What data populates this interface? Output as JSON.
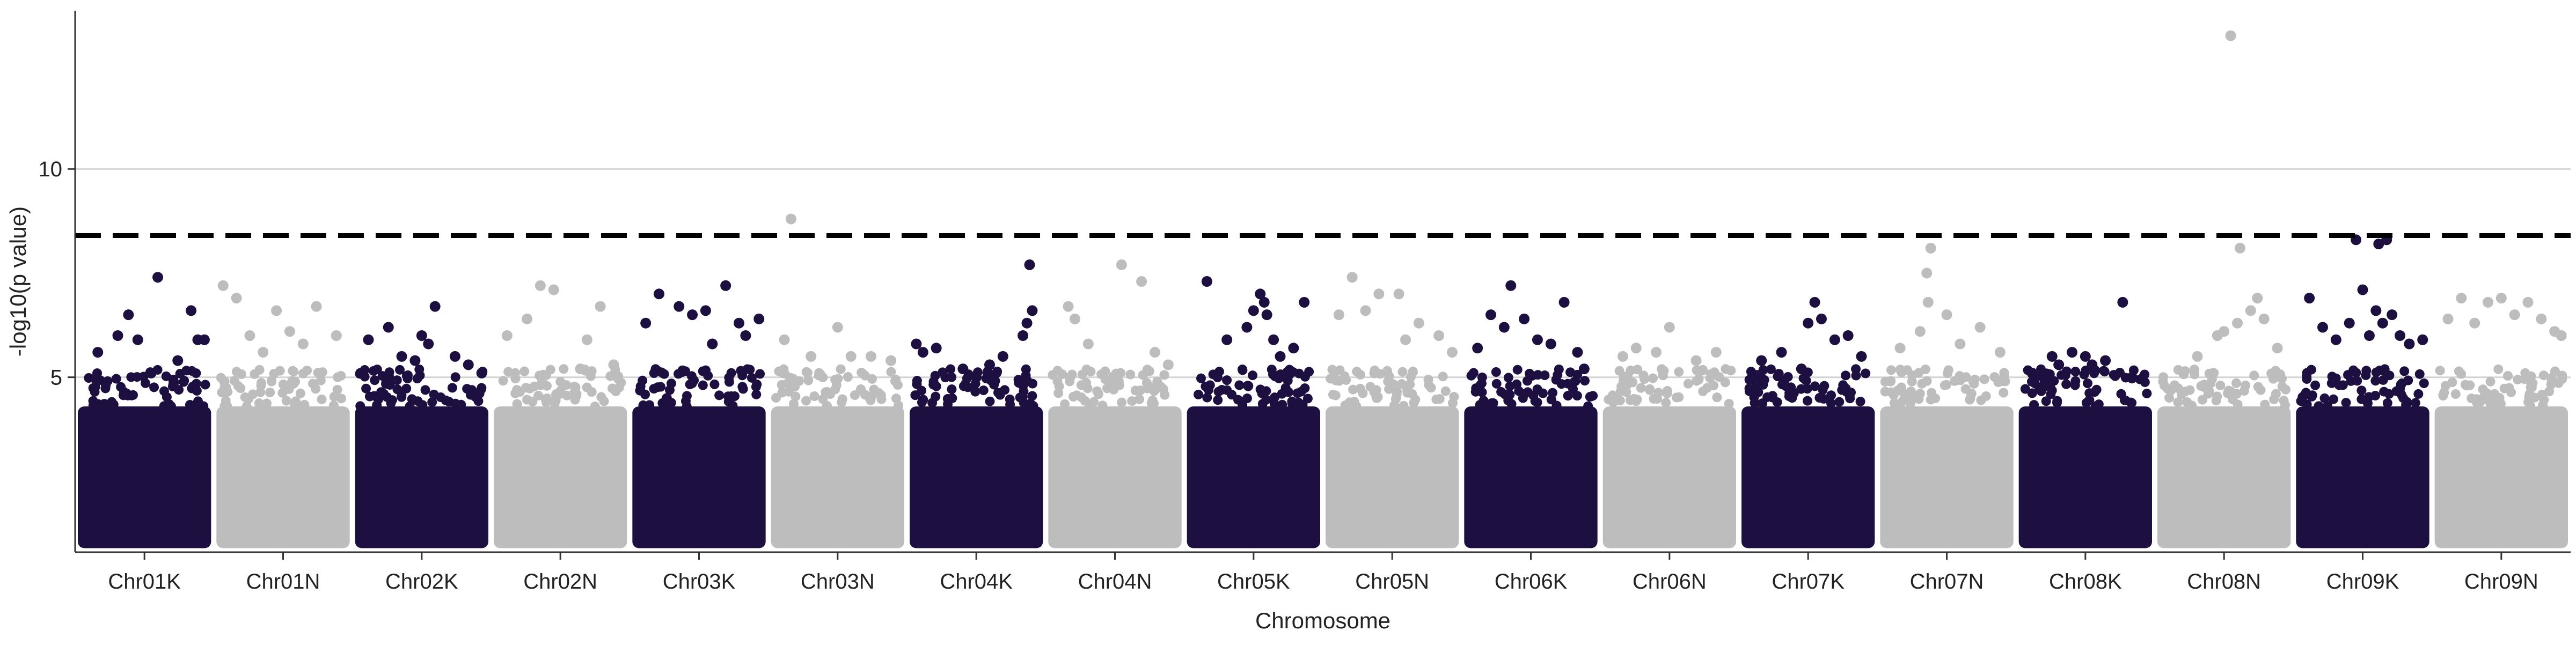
{
  "chart_data": {
    "type": "scatter",
    "subtype": "manhattan",
    "title": "",
    "xlabel": "Chromosome",
    "ylabel": "-log10(p value)",
    "ylim": [
      0.8,
      13.8
    ],
    "yticks": [
      5,
      10
    ],
    "grid": "horizontal major only",
    "legend": "none",
    "threshold": {
      "y": 8.4,
      "style": "dashed",
      "color": "#000000"
    },
    "colors": {
      "odd": "#1d0f40",
      "even": "#bdbdbd"
    },
    "point_density_base": {
      "min": 1,
      "max": 4.3
    },
    "categories": [
      "Chr01K",
      "Chr01N",
      "Chr02K",
      "Chr02N",
      "Chr03K",
      "Chr03N",
      "Chr04K",
      "Chr04N",
      "Chr05K",
      "Chr05N",
      "Chr06K",
      "Chr06N",
      "Chr07K",
      "Chr07N",
      "Chr08K",
      "Chr08N",
      "Chr09K",
      "Chr09N"
    ],
    "series": [
      {
        "chromosome": "Chr01K",
        "top_points": [
          [
            0.15,
            5.6
          ],
          [
            0.3,
            6.0
          ],
          [
            0.45,
            5.9
          ],
          [
            0.6,
            7.4
          ],
          [
            0.75,
            5.4
          ],
          [
            0.85,
            6.6
          ],
          [
            0.9,
            5.9
          ],
          [
            0.55,
            5.1
          ],
          [
            0.38,
            6.5
          ],
          [
            0.95,
            5.9
          ]
        ]
      },
      {
        "chromosome": "Chr01N",
        "top_points": [
          [
            0.05,
            7.2
          ],
          [
            0.15,
            6.9
          ],
          [
            0.25,
            6.0
          ],
          [
            0.45,
            6.6
          ],
          [
            0.55,
            6.1
          ],
          [
            0.75,
            6.7
          ],
          [
            0.9,
            6.0
          ],
          [
            0.35,
            5.6
          ],
          [
            0.65,
            5.8
          ]
        ]
      },
      {
        "chromosome": "Chr02K",
        "top_points": [
          [
            0.1,
            5.9
          ],
          [
            0.25,
            6.2
          ],
          [
            0.35,
            5.5
          ],
          [
            0.5,
            6.0
          ],
          [
            0.55,
            5.8
          ],
          [
            0.6,
            6.7
          ],
          [
            0.75,
            5.5
          ],
          [
            0.85,
            5.3
          ],
          [
            0.95,
            5.1
          ],
          [
            0.45,
            5.4
          ]
        ]
      },
      {
        "chromosome": "Chr02N",
        "top_points": [
          [
            0.1,
            6.0
          ],
          [
            0.25,
            6.4
          ],
          [
            0.35,
            7.2
          ],
          [
            0.45,
            7.1
          ],
          [
            0.65,
            5.2
          ],
          [
            0.7,
            5.9
          ],
          [
            0.8,
            6.7
          ],
          [
            0.9,
            5.3
          ]
        ]
      },
      {
        "chromosome": "Chr03K",
        "top_points": [
          [
            0.1,
            6.3
          ],
          [
            0.2,
            7.0
          ],
          [
            0.35,
            6.7
          ],
          [
            0.45,
            6.5
          ],
          [
            0.55,
            6.6
          ],
          [
            0.7,
            7.2
          ],
          [
            0.8,
            6.3
          ],
          [
            0.85,
            6.0
          ],
          [
            0.95,
            6.4
          ],
          [
            0.6,
            5.8
          ]
        ]
      },
      {
        "chromosome": "Chr03N",
        "top_points": [
          [
            0.15,
            8.8
          ],
          [
            0.1,
            5.9
          ],
          [
            0.3,
            5.5
          ],
          [
            0.5,
            6.2
          ],
          [
            0.6,
            5.5
          ],
          [
            0.75,
            5.5
          ],
          [
            0.9,
            5.4
          ]
        ]
      },
      {
        "chromosome": "Chr04K",
        "top_points": [
          [
            0.05,
            5.8
          ],
          [
            0.1,
            5.6
          ],
          [
            0.2,
            5.7
          ],
          [
            0.4,
            5.2
          ],
          [
            0.5,
            5.0
          ],
          [
            0.6,
            5.3
          ],
          [
            0.7,
            5.5
          ],
          [
            0.85,
            6.0
          ],
          [
            0.88,
            6.3
          ],
          [
            0.9,
            7.7
          ],
          [
            0.92,
            6.6
          ]
        ]
      },
      {
        "chromosome": "Chr04N",
        "top_points": [
          [
            0.15,
            6.7
          ],
          [
            0.2,
            6.4
          ],
          [
            0.3,
            5.8
          ],
          [
            0.55,
            7.7
          ],
          [
            0.7,
            7.3
          ],
          [
            0.8,
            5.6
          ],
          [
            0.9,
            5.3
          ]
        ]
      },
      {
        "chromosome": "Chr05K",
        "top_points": [
          [
            0.15,
            7.3
          ],
          [
            0.3,
            5.9
          ],
          [
            0.45,
            6.2
          ],
          [
            0.5,
            6.6
          ],
          [
            0.55,
            7.0
          ],
          [
            0.58,
            6.8
          ],
          [
            0.6,
            6.5
          ],
          [
            0.65,
            5.9
          ],
          [
            0.8,
            5.7
          ],
          [
            0.88,
            6.8
          ],
          [
            0.7,
            5.5
          ]
        ]
      },
      {
        "chromosome": "Chr05N",
        "top_points": [
          [
            0.1,
            6.5
          ],
          [
            0.2,
            7.4
          ],
          [
            0.3,
            6.6
          ],
          [
            0.4,
            7.0
          ],
          [
            0.55,
            7.0
          ],
          [
            0.6,
            5.9
          ],
          [
            0.7,
            6.3
          ],
          [
            0.85,
            6.0
          ],
          [
            0.95,
            5.6
          ]
        ]
      },
      {
        "chromosome": "Chr06K",
        "top_points": [
          [
            0.1,
            5.7
          ],
          [
            0.2,
            6.5
          ],
          [
            0.35,
            7.2
          ],
          [
            0.45,
            6.4
          ],
          [
            0.55,
            5.9
          ],
          [
            0.65,
            5.8
          ],
          [
            0.75,
            6.8
          ],
          [
            0.85,
            5.6
          ],
          [
            0.9,
            5.2
          ],
          [
            0.3,
            6.2
          ]
        ]
      },
      {
        "chromosome": "Chr06N",
        "top_points": [
          [
            0.15,
            5.5
          ],
          [
            0.25,
            5.7
          ],
          [
            0.4,
            5.6
          ],
          [
            0.5,
            6.2
          ],
          [
            0.7,
            5.4
          ],
          [
            0.85,
            5.6
          ]
        ]
      },
      {
        "chromosome": "Chr07K",
        "top_points": [
          [
            0.15,
            5.4
          ],
          [
            0.3,
            5.6
          ],
          [
            0.5,
            6.3
          ],
          [
            0.55,
            6.8
          ],
          [
            0.6,
            6.4
          ],
          [
            0.7,
            5.9
          ],
          [
            0.8,
            6.0
          ],
          [
            0.9,
            5.5
          ],
          [
            0.45,
            5.2
          ]
        ]
      },
      {
        "chromosome": "Chr07N",
        "top_points": [
          [
            0.15,
            5.7
          ],
          [
            0.3,
            6.1
          ],
          [
            0.35,
            7.5
          ],
          [
            0.36,
            6.8
          ],
          [
            0.38,
            8.1
          ],
          [
            0.5,
            6.5
          ],
          [
            0.6,
            5.8
          ],
          [
            0.75,
            6.2
          ],
          [
            0.9,
            5.6
          ]
        ]
      },
      {
        "chromosome": "Chr08K",
        "top_points": [
          [
            0.1,
            5.1
          ],
          [
            0.25,
            5.5
          ],
          [
            0.4,
            5.6
          ],
          [
            0.5,
            5.5
          ],
          [
            0.55,
            5.3
          ],
          [
            0.65,
            5.4
          ],
          [
            0.78,
            6.8
          ],
          [
            0.85,
            5.0
          ],
          [
            0.3,
            5.3
          ]
        ]
      },
      {
        "chromosome": "Chr08N",
        "top_points": [
          [
            0.3,
            5.5
          ],
          [
            0.45,
            6.0
          ],
          [
            0.5,
            6.1
          ],
          [
            0.6,
            6.3
          ],
          [
            0.62,
            8.1
          ],
          [
            0.7,
            6.6
          ],
          [
            0.75,
            6.9
          ],
          [
            0.8,
            6.4
          ],
          [
            0.9,
            5.7
          ],
          [
            0.55,
            13.2
          ]
        ]
      },
      {
        "chromosome": "Chr09K",
        "top_points": [
          [
            0.1,
            6.9
          ],
          [
            0.2,
            6.2
          ],
          [
            0.3,
            5.9
          ],
          [
            0.4,
            6.3
          ],
          [
            0.45,
            8.3
          ],
          [
            0.5,
            7.1
          ],
          [
            0.6,
            6.6
          ],
          [
            0.62,
            8.2
          ],
          [
            0.68,
            8.3
          ],
          [
            0.65,
            6.3
          ],
          [
            0.72,
            6.5
          ],
          [
            0.78,
            6.0
          ],
          [
            0.85,
            5.8
          ],
          [
            0.95,
            5.9
          ],
          [
            0.55,
            6.0
          ]
        ]
      },
      {
        "chromosome": "Chr09N",
        "top_points": [
          [
            0.1,
            6.4
          ],
          [
            0.2,
            6.9
          ],
          [
            0.3,
            6.3
          ],
          [
            0.4,
            6.8
          ],
          [
            0.5,
            6.9
          ],
          [
            0.6,
            6.5
          ],
          [
            0.7,
            6.8
          ],
          [
            0.8,
            6.4
          ],
          [
            0.9,
            6.1
          ],
          [
            0.95,
            6.0
          ]
        ]
      }
    ]
  }
}
